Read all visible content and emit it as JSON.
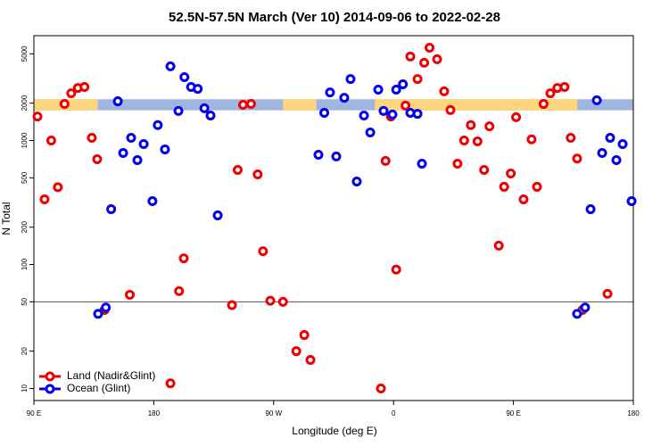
{
  "chart_data": {
    "type": "scatter",
    "title": "52.5N-57.5N March (Ver 10)   2014-09-06 to 2022-02-28",
    "xlabel": "Longitude (deg E)",
    "ylabel": "N Total",
    "yscale": "log",
    "xlim": [
      90,
      540
    ],
    "ylim": [
      8,
      7000
    ],
    "xticks": [
      {
        "value": 90,
        "label": "90 E"
      },
      180,
      {
        "value": 270,
        "label": "90 W"
      },
      {
        "value": 360,
        "label": "0"
      },
      {
        "value": 450,
        "label": "90 E"
      },
      {
        "value": 540,
        "label": "180"
      }
    ],
    "yticks": [
      10,
      20,
      50,
      100,
      200,
      500,
      1000,
      2000,
      5000
    ],
    "hline": 50,
    "band": {
      "range": [
        1750,
        2150
      ],
      "color": "#9fb6e0",
      "land_color": "#fdd57a",
      "land_segments": [
        [
          90,
          138
        ],
        [
          277,
          302
        ],
        [
          346,
          498
        ]
      ]
    },
    "legend": "lower left",
    "series": [
      {
        "name": "Land (Nadir&Glint)",
        "color": "#ee0000",
        "x": [
          92.7,
          98,
          103,
          108,
          113,
          118,
          123,
          128,
          133.5,
          137.5,
          143,
          162,
          192.5,
          199,
          202.5,
          238.7,
          243,
          247,
          253,
          258,
          262,
          267.5,
          277,
          287,
          293,
          297.6,
          350.5,
          354,
          358,
          362,
          369,
          372.6,
          378,
          383,
          387,
          392.7,
          398,
          402.7,
          408,
          413,
          418,
          423,
          428,
          432,
          439,
          443,
          448,
          452,
          457.6,
          463.6,
          467.7,
          472.6,
          477.7,
          483,
          488.4,
          493,
          497.8,
          501.8,
          520.6
        ],
        "values": [
          1560,
          335,
          1000,
          420,
          1970,
          2400,
          2650,
          2700,
          1050,
          706,
          43,
          57,
          11,
          61,
          112,
          47,
          579,
          1940,
          1970,
          533,
          128,
          51,
          50,
          20,
          27,
          17,
          10,
          684,
          1560,
          91,
          1910,
          4750,
          3130,
          4230,
          5600,
          4520,
          2490,
          1760,
          650,
          1000,
          1330,
          984,
          579,
          1300,
          142,
          423,
          542,
          1540,
          335,
          1020,
          423,
          1970,
          2400,
          2650,
          2700,
          1050,
          715,
          43,
          58
        ]
      },
      {
        "name": "Ocean (Glint)",
        "color": "#0000ee",
        "x": [
          138.2,
          144,
          148,
          153,
          157,
          163,
          167.7,
          172.4,
          179,
          183,
          188.4,
          192.5,
          198.5,
          203,
          208,
          213,
          218,
          222.6,
          228,
          303.6,
          308,
          312.3,
          317,
          323,
          327.7,
          332.4,
          337.8,
          342.5,
          348.5,
          352.5,
          359.2,
          362,
          367,
          372.6,
          378,
          381.3,
          497.8,
          503.8,
          507.9,
          512.6,
          516.6,
          522.6,
          527.3,
          532,
          538.7
        ],
        "values": [
          40,
          45,
          279,
          2070,
          793,
          1050,
          695,
          936,
          324,
          1330,
          848,
          3960,
          1730,
          3240,
          2700,
          2610,
          1820,
          1590,
          249,
          767,
          1670,
          2440,
          743,
          2210,
          3130,
          467,
          1590,
          1160,
          2570,
          1730,
          1620,
          2570,
          2840,
          1670,
          1640,
          650,
          40,
          45,
          279,
          2110,
          793,
          1050,
          695,
          936,
          324
        ]
      }
    ]
  }
}
